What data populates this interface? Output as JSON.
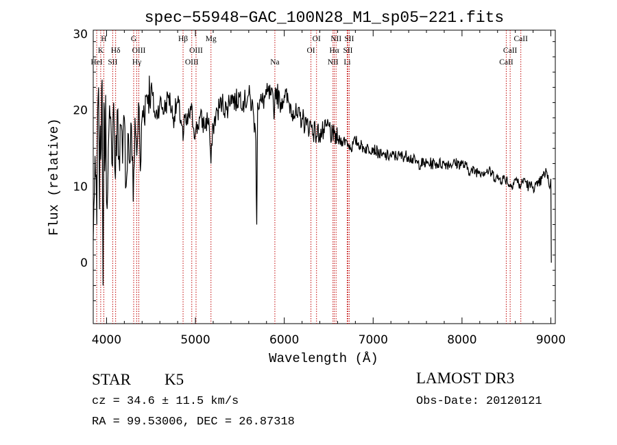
{
  "chart_data": {
    "type": "line",
    "title": "spec−55948−GAC_100N28_M1_sp05−221.fits",
    "xlabel": "Wavelength (Å)",
    "ylabel": "Flux (relative)",
    "xlim": [
      3850,
      9050
    ],
    "ylim": [
      -8,
      30.5
    ],
    "xticks": [
      4000,
      5000,
      6000,
      7000,
      8000,
      9000
    ],
    "yticks": [
      0,
      10,
      20,
      30
    ],
    "grid": false,
    "series": [
      {
        "name": "flux",
        "x": [
          3850,
          3870,
          3890,
          3900,
          3910,
          3920,
          3930,
          3940,
          3950,
          3960,
          3970,
          3980,
          3990,
          4000,
          4020,
          4040,
          4060,
          4080,
          4100,
          4120,
          4140,
          4160,
          4180,
          4200,
          4220,
          4240,
          4260,
          4280,
          4300,
          4320,
          4340,
          4360,
          4380,
          4400,
          4450,
          4500,
          4550,
          4600,
          4650,
          4700,
          4750,
          4800,
          4850,
          4861,
          4880,
          4900,
          4950,
          5000,
          5050,
          5100,
          5150,
          5175,
          5200,
          5250,
          5300,
          5350,
          5400,
          5450,
          5500,
          5550,
          5600,
          5650,
          5680,
          5690,
          5700,
          5750,
          5800,
          5850,
          5890,
          5900,
          5950,
          6000,
          6050,
          6100,
          6150,
          6200,
          6250,
          6300,
          6350,
          6400,
          6450,
          6500,
          6550,
          6563,
          6600,
          6650,
          6700,
          6750,
          6800,
          6900,
          7000,
          7100,
          7200,
          7300,
          7400,
          7500,
          7600,
          7700,
          7800,
          7900,
          8000,
          8100,
          8200,
          8300,
          8400,
          8500,
          8542,
          8600,
          8662,
          8700,
          8750,
          8800,
          8850,
          8900,
          8950,
          8980,
          9000,
          9005
        ],
        "values": [
          3,
          14,
          5,
          20,
          23,
          7,
          18,
          15,
          24,
          -3,
          21,
          12,
          22,
          8,
          15,
          19,
          13,
          21,
          11,
          20,
          14,
          18,
          13,
          19,
          10,
          17,
          13,
          18,
          8,
          19,
          14,
          21,
          12,
          19,
          22,
          23,
          19,
          21,
          20,
          22,
          19,
          21,
          18,
          16,
          19,
          18,
          20,
          17,
          19,
          18,
          19,
          13,
          18,
          20,
          21,
          20,
          22,
          21,
          22,
          21,
          22,
          20,
          16,
          5,
          21,
          21,
          22,
          22,
          20,
          23,
          21,
          22,
          21,
          20,
          19,
          19,
          18,
          18,
          17,
          17,
          17,
          18,
          16,
          17,
          16,
          16,
          16,
          15,
          16,
          15,
          15,
          14,
          14,
          14,
          14,
          13,
          13,
          13,
          13,
          13,
          13,
          12,
          12,
          12,
          11,
          11,
          10,
          11,
          10,
          11,
          10,
          10,
          10,
          11,
          12,
          10,
          11,
          0
        ]
      }
    ],
    "lines": [
      {
        "label": "K",
        "wavelength": 3934,
        "row": 2
      },
      {
        "label": "H",
        "wavelength": 3969,
        "row": 1
      },
      {
        "label": "HeI",
        "wavelength": 3889,
        "row": 3
      },
      {
        "label": "SII",
        "wavelength": 4069,
        "row": 3
      },
      {
        "label": "Hδ",
        "wavelength": 4102,
        "row": 2
      },
      {
        "label": "G",
        "wavelength": 4305,
        "row": 1
      },
      {
        "label": "OIII",
        "wavelength": 4363,
        "row": 2
      },
      {
        "label": "Hγ",
        "wavelength": 4340,
        "row": 3
      },
      {
        "label": "Hβ",
        "wavelength": 4861,
        "row": 1
      },
      {
        "label": "OIII",
        "wavelength": 4959,
        "row": 3
      },
      {
        "label": "OIII",
        "wavelength": 5007,
        "row": 2
      },
      {
        "label": "Mg",
        "wavelength": 5175,
        "row": 1
      },
      {
        "label": "Na",
        "wavelength": 5894,
        "row": 3
      },
      {
        "label": "OI",
        "wavelength": 6300,
        "row": 2
      },
      {
        "label": "OI",
        "wavelength": 6363,
        "row": 1
      },
      {
        "label": "NII",
        "wavelength": 6548,
        "row": 3
      },
      {
        "label": "NII",
        "wavelength": 6583,
        "row": 1
      },
      {
        "label": "Hα",
        "wavelength": 6563,
        "row": 2
      },
      {
        "label": "SII",
        "wavelength": 6716,
        "row": 2
      },
      {
        "label": "SII",
        "wavelength": 6731,
        "row": 1
      },
      {
        "label": "Li",
        "wavelength": 6708,
        "row": 3
      },
      {
        "label": "CaII",
        "wavelength": 8498,
        "row": 3
      },
      {
        "label": "CaII",
        "wavelength": 8542,
        "row": 2
      },
      {
        "label": "CaII",
        "wavelength": 8662,
        "row": 1
      }
    ]
  },
  "info": {
    "class_label": "STAR",
    "subclass": "K5",
    "survey": "LAMOST DR3",
    "redshift": "cz = 34.6 ± 11.5 km/s",
    "obs_date": "Obs-Date: 20120121",
    "coords": "RA =  99.53006, DEC =  26.87318"
  },
  "colors": {
    "line_marker": "#c00000",
    "spectrum": "#000000",
    "axes": "#000000"
  }
}
